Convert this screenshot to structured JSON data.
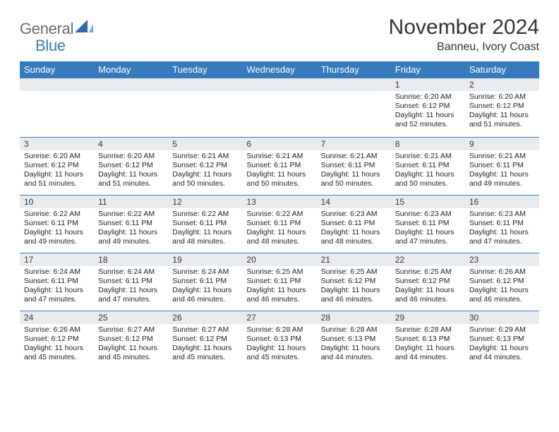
{
  "logo": {
    "word1": "General",
    "word2": "Blue"
  },
  "title": "November 2024",
  "location": "Banneu, Ivory Coast",
  "colors": {
    "header_bg": "#377bbd",
    "header_text": "#ffffff",
    "daynum_bg": "#e9ecef",
    "row_border": "#377bbd",
    "page_bg": "#ffffff",
    "text": "#222222",
    "logo_gray": "#6b6b6b",
    "logo_blue": "#377bbd"
  },
  "font": {
    "family": "Arial",
    "title_size": 30,
    "location_size": 16,
    "dayhead_size": 13,
    "daynum_size": 12,
    "body_size": 10.5
  },
  "days_of_week": [
    "Sunday",
    "Monday",
    "Tuesday",
    "Wednesday",
    "Thursday",
    "Friday",
    "Saturday"
  ],
  "grid": [
    [
      {
        "day": null
      },
      {
        "day": null
      },
      {
        "day": null
      },
      {
        "day": null
      },
      {
        "day": null
      },
      {
        "day": "1",
        "sunrise": "Sunrise: 6:20 AM",
        "sunset": "Sunset: 6:12 PM",
        "daylight": "Daylight: 11 hours and 52 minutes."
      },
      {
        "day": "2",
        "sunrise": "Sunrise: 6:20 AM",
        "sunset": "Sunset: 6:12 PM",
        "daylight": "Daylight: 11 hours and 51 minutes."
      }
    ],
    [
      {
        "day": "3",
        "sunrise": "Sunrise: 6:20 AM",
        "sunset": "Sunset: 6:12 PM",
        "daylight": "Daylight: 11 hours and 51 minutes."
      },
      {
        "day": "4",
        "sunrise": "Sunrise: 6:20 AM",
        "sunset": "Sunset: 6:12 PM",
        "daylight": "Daylight: 11 hours and 51 minutes."
      },
      {
        "day": "5",
        "sunrise": "Sunrise: 6:21 AM",
        "sunset": "Sunset: 6:12 PM",
        "daylight": "Daylight: 11 hours and 50 minutes."
      },
      {
        "day": "6",
        "sunrise": "Sunrise: 6:21 AM",
        "sunset": "Sunset: 6:11 PM",
        "daylight": "Daylight: 11 hours and 50 minutes."
      },
      {
        "day": "7",
        "sunrise": "Sunrise: 6:21 AM",
        "sunset": "Sunset: 6:11 PM",
        "daylight": "Daylight: 11 hours and 50 minutes."
      },
      {
        "day": "8",
        "sunrise": "Sunrise: 6:21 AM",
        "sunset": "Sunset: 6:11 PM",
        "daylight": "Daylight: 11 hours and 50 minutes."
      },
      {
        "day": "9",
        "sunrise": "Sunrise: 6:21 AM",
        "sunset": "Sunset: 6:11 PM",
        "daylight": "Daylight: 11 hours and 49 minutes."
      }
    ],
    [
      {
        "day": "10",
        "sunrise": "Sunrise: 6:22 AM",
        "sunset": "Sunset: 6:11 PM",
        "daylight": "Daylight: 11 hours and 49 minutes."
      },
      {
        "day": "11",
        "sunrise": "Sunrise: 6:22 AM",
        "sunset": "Sunset: 6:11 PM",
        "daylight": "Daylight: 11 hours and 49 minutes."
      },
      {
        "day": "12",
        "sunrise": "Sunrise: 6:22 AM",
        "sunset": "Sunset: 6:11 PM",
        "daylight": "Daylight: 11 hours and 48 minutes."
      },
      {
        "day": "13",
        "sunrise": "Sunrise: 6:22 AM",
        "sunset": "Sunset: 6:11 PM",
        "daylight": "Daylight: 11 hours and 48 minutes."
      },
      {
        "day": "14",
        "sunrise": "Sunrise: 6:23 AM",
        "sunset": "Sunset: 6:11 PM",
        "daylight": "Daylight: 11 hours and 48 minutes."
      },
      {
        "day": "15",
        "sunrise": "Sunrise: 6:23 AM",
        "sunset": "Sunset: 6:11 PM",
        "daylight": "Daylight: 11 hours and 47 minutes."
      },
      {
        "day": "16",
        "sunrise": "Sunrise: 6:23 AM",
        "sunset": "Sunset: 6:11 PM",
        "daylight": "Daylight: 11 hours and 47 minutes."
      }
    ],
    [
      {
        "day": "17",
        "sunrise": "Sunrise: 6:24 AM",
        "sunset": "Sunset: 6:11 PM",
        "daylight": "Daylight: 11 hours and 47 minutes."
      },
      {
        "day": "18",
        "sunrise": "Sunrise: 6:24 AM",
        "sunset": "Sunset: 6:11 PM",
        "daylight": "Daylight: 11 hours and 47 minutes."
      },
      {
        "day": "19",
        "sunrise": "Sunrise: 6:24 AM",
        "sunset": "Sunset: 6:11 PM",
        "daylight": "Daylight: 11 hours and 46 minutes."
      },
      {
        "day": "20",
        "sunrise": "Sunrise: 6:25 AM",
        "sunset": "Sunset: 6:11 PM",
        "daylight": "Daylight: 11 hours and 46 minutes."
      },
      {
        "day": "21",
        "sunrise": "Sunrise: 6:25 AM",
        "sunset": "Sunset: 6:12 PM",
        "daylight": "Daylight: 11 hours and 46 minutes."
      },
      {
        "day": "22",
        "sunrise": "Sunrise: 6:25 AM",
        "sunset": "Sunset: 6:12 PM",
        "daylight": "Daylight: 11 hours and 46 minutes."
      },
      {
        "day": "23",
        "sunrise": "Sunrise: 6:26 AM",
        "sunset": "Sunset: 6:12 PM",
        "daylight": "Daylight: 11 hours and 46 minutes."
      }
    ],
    [
      {
        "day": "24",
        "sunrise": "Sunrise: 6:26 AM",
        "sunset": "Sunset: 6:12 PM",
        "daylight": "Daylight: 11 hours and 45 minutes."
      },
      {
        "day": "25",
        "sunrise": "Sunrise: 6:27 AM",
        "sunset": "Sunset: 6:12 PM",
        "daylight": "Daylight: 11 hours and 45 minutes."
      },
      {
        "day": "26",
        "sunrise": "Sunrise: 6:27 AM",
        "sunset": "Sunset: 6:12 PM",
        "daylight": "Daylight: 11 hours and 45 minutes."
      },
      {
        "day": "27",
        "sunrise": "Sunrise: 6:28 AM",
        "sunset": "Sunset: 6:13 PM",
        "daylight": "Daylight: 11 hours and 45 minutes."
      },
      {
        "day": "28",
        "sunrise": "Sunrise: 6:28 AM",
        "sunset": "Sunset: 6:13 PM",
        "daylight": "Daylight: 11 hours and 44 minutes."
      },
      {
        "day": "29",
        "sunrise": "Sunrise: 6:28 AM",
        "sunset": "Sunset: 6:13 PM",
        "daylight": "Daylight: 11 hours and 44 minutes."
      },
      {
        "day": "30",
        "sunrise": "Sunrise: 6:29 AM",
        "sunset": "Sunset: 6:13 PM",
        "daylight": "Daylight: 11 hours and 44 minutes."
      }
    ]
  ]
}
